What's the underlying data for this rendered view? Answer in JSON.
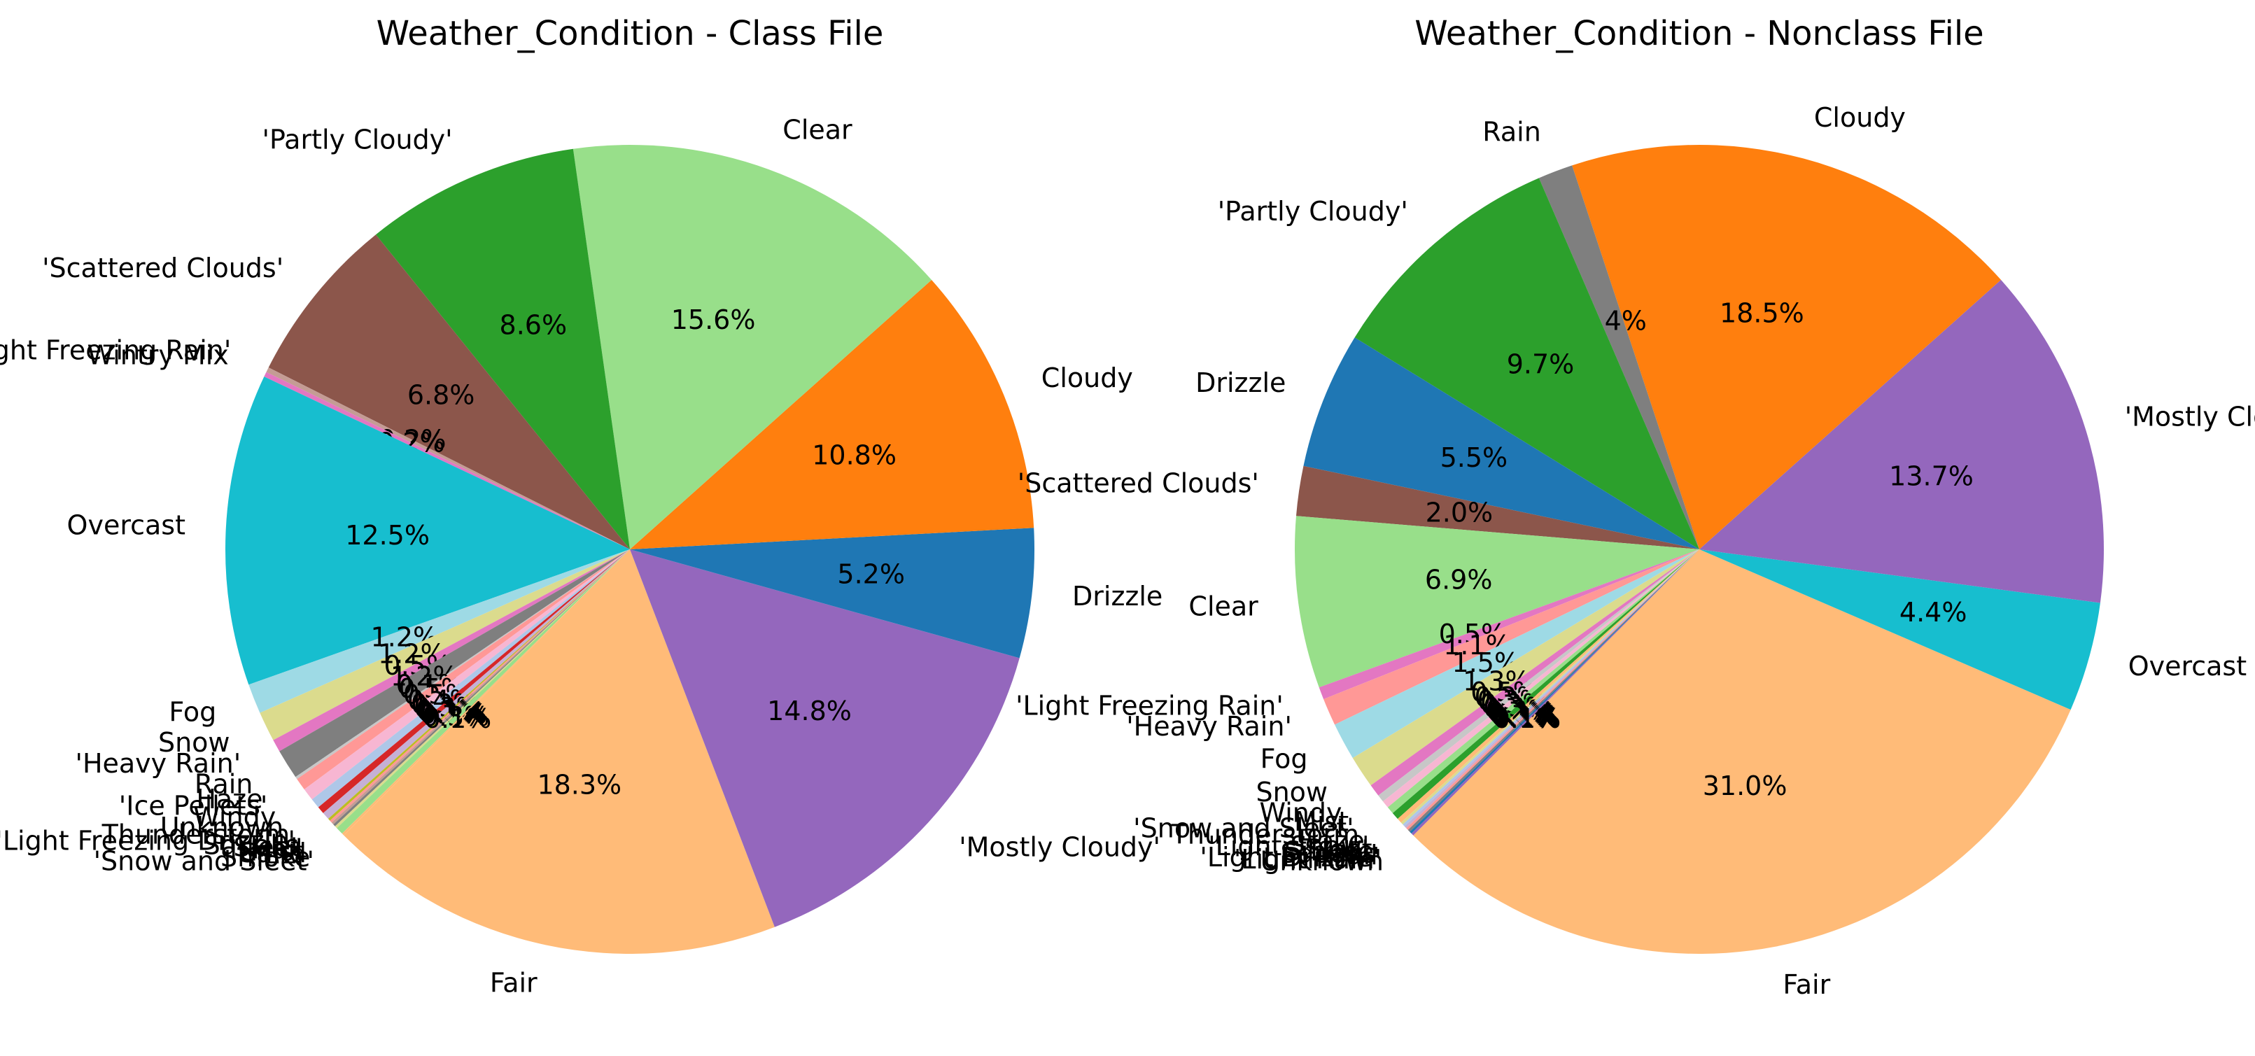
{
  "chart_data": [
    {
      "type": "pie",
      "title": "Weather_Condition - Class File",
      "start_angle": 225,
      "slices": [
        {
          "label": "Fair",
          "value": 18.4,
          "color": "#ffbb78"
        },
        {
          "label": "'Mostly Cloudy'",
          "value": 14.9,
          "color": "#9467bd"
        },
        {
          "label": "Drizzle",
          "value": 5.2,
          "color": "#1f77b4"
        },
        {
          "label": "Cloudy",
          "value": 10.8,
          "color": "#ff7f0e"
        },
        {
          "label": "Clear",
          "value": 15.7,
          "color": "#98df8a"
        },
        {
          "label": "'Partly Cloudy'",
          "value": 8.6,
          "color": "#2ca02c"
        },
        {
          "label": "'Scattered Clouds'",
          "value": 6.8,
          "color": "#8c564b"
        },
        {
          "label": "'Light Freezing Rain'",
          "value": 0.2,
          "color": "#c49c94"
        },
        {
          "label": "Wintry Mix",
          "value": 0.2,
          "color": "#e377c2"
        },
        {
          "label": "Overcast",
          "value": 12.5,
          "color": "#17becf"
        },
        {
          "label": "Fog",
          "value": 1.2,
          "color": "#9edae5"
        },
        {
          "label": "Snow",
          "value": 1.2,
          "color": "#dbdb8d"
        },
        {
          "label": "'Heavy Rain'",
          "value": 0.5,
          "color": "#e377c2"
        },
        {
          "label": "Rain",
          "value": 1.2,
          "color": "#7f7f7f"
        },
        {
          "label": "Haze",
          "value": 0.1,
          "color": "#c7c7c7"
        },
        {
          "label": "'Ice Pellets'",
          "value": 0.5,
          "color": "#ff9896"
        },
        {
          "label": "Windy",
          "value": 0.5,
          "color": "#f7b6d2"
        },
        {
          "label": "Unknown",
          "value": 0.4,
          "color": "#aec7e8"
        },
        {
          "label": "Thunderstorm",
          "value": 0.3,
          "color": "#d62728"
        },
        {
          "label": "'Light Freezing Drizzle'",
          "value": 0.3,
          "color": "#c5b0d5"
        },
        {
          "label": "Squalls",
          "value": 0.1,
          "color": "#bcbd22"
        },
        {
          "label": "Sleet",
          "value": 0.1,
          "color": "#ff9896"
        },
        {
          "label": "Hail",
          "value": 0.1,
          "color": "#c49c94"
        },
        {
          "label": "Mist",
          "value": 0.1,
          "color": "#7f7f7f"
        },
        {
          "label": "Sand",
          "value": 0.1,
          "color": "#dbdb8d"
        },
        {
          "label": "Smoke",
          "value": 0.3,
          "color": "#98df8a"
        },
        {
          "label": "'Snow and Sleet'",
          "value": 0.1,
          "color": "#ffbb78"
        }
      ]
    },
    {
      "type": "pie",
      "title": "Weather_Condition - Nonclass File",
      "start_angle": 225,
      "slices": [
        {
          "label": "Fair",
          "value": 31.2,
          "color": "#ffbb78"
        },
        {
          "label": "Overcast",
          "value": 4.4,
          "color": "#17becf"
        },
        {
          "label": "'Mostly Cloudy'",
          "value": 13.8,
          "color": "#9467bd"
        },
        {
          "label": "Cloudy",
          "value": 18.6,
          "color": "#ff7f0e"
        },
        {
          "label": "Rain",
          "value": 1.4,
          "color": "#7f7f7f"
        },
        {
          "label": "'Partly Cloudy'",
          "value": 9.8,
          "color": "#2ca02c"
        },
        {
          "label": "Drizzle",
          "value": 5.5,
          "color": "#1f77b4"
        },
        {
          "label": "'Scattered Clouds'",
          "value": 2.0,
          "color": "#8c564b"
        },
        {
          "label": "Clear",
          "value": 6.9,
          "color": "#98df8a"
        },
        {
          "label": "'Light Freezing Rain'",
          "value": 0.5,
          "color": "#e377c2"
        },
        {
          "label": "'Heavy Rain'",
          "value": 1.1,
          "color": "#ff9896"
        },
        {
          "label": "Fog",
          "value": 1.5,
          "color": "#9edae5"
        },
        {
          "label": "Snow",
          "value": 1.3,
          "color": "#dbdb8d"
        },
        {
          "label": "Windy",
          "value": 0.5,
          "color": "#e377c2"
        },
        {
          "label": "Mist",
          "value": 0.3,
          "color": "#c7c7c7"
        },
        {
          "label": "'Snow and Sleet'",
          "value": 0.3,
          "color": "#f7b6d2"
        },
        {
          "label": "Thunderstorm",
          "value": 0.3,
          "color": "#98df8a"
        },
        {
          "label": "Haze",
          "value": 0.3,
          "color": "#2ca02c"
        },
        {
          "label": "'Light Snow'",
          "value": 0.2,
          "color": "#ffbb78"
        },
        {
          "label": "Sleet",
          "value": 0.1,
          "color": "#dbdb8d"
        },
        {
          "label": "Smoke",
          "value": 0.1,
          "color": "#aec7e8"
        },
        {
          "label": "Squalls",
          "value": 0.1,
          "color": "#c5b0d5"
        },
        {
          "label": "Hail",
          "value": 0.1,
          "color": "#ff9896"
        },
        {
          "label": "'Light Drizzle'",
          "value": 0.1,
          "color": "#7f7f7f"
        },
        {
          "label": "'Light Rain'",
          "value": 0.1,
          "color": "#1f77b4"
        },
        {
          "label": "Unknown",
          "value": 0.1,
          "color": "#9467bd"
        }
      ]
    }
  ]
}
